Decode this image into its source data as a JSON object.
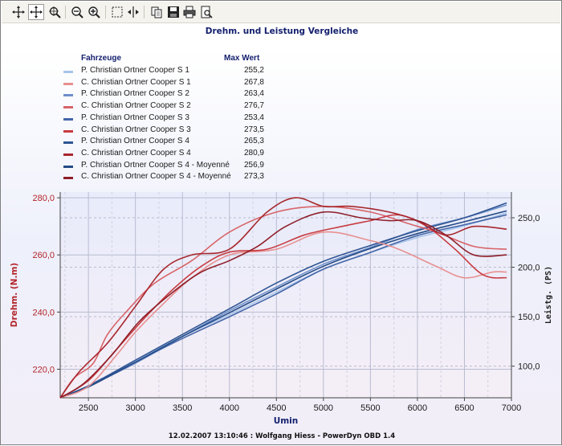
{
  "toolbar": {
    "buttons": [
      {
        "name": "move-tool-icon"
      },
      {
        "name": "zoom-area-icon"
      },
      {
        "name": "zoom-out-icon"
      },
      {
        "name": "zoom-in-icon"
      },
      {
        "name": "select-region-icon"
      },
      {
        "name": "cursor-split-icon"
      },
      {
        "name": "copy-icon"
      },
      {
        "name": "save-icon"
      },
      {
        "name": "print-icon"
      },
      {
        "name": "print-preview-icon"
      }
    ]
  },
  "legend": {
    "header_name": "Fahrzeuge",
    "header_value": "Max Wert",
    "items": [
      {
        "name": "P. Christian Ortner Cooper S 1",
        "value": "255,2",
        "color": "#a8c4ea"
      },
      {
        "name": "C. Christian Ortner Cooper S 1",
        "value": "267,8",
        "color": "#e89090"
      },
      {
        "name": "P. Christian Ortner Cooper S 2",
        "value": "263,4",
        "color": "#6e8fc9"
      },
      {
        "name": "C. Christian Ortner Cooper S 2",
        "value": "276,7",
        "color": "#d86468"
      },
      {
        "name": "P. Christian Ortner Cooper S 3",
        "value": "253,4",
        "color": "#4466a8"
      },
      {
        "name": "C. Christian Ortner Cooper S 3",
        "value": "273,5",
        "color": "#c83c42"
      },
      {
        "name": "P. Christian Ortner Cooper S 4",
        "value": "265,3",
        "color": "#2f5593"
      },
      {
        "name": "C. Christian Ortner Cooper S 4",
        "value": "280,9",
        "color": "#a8282e"
      },
      {
        "name": "P. Christian Ortner Cooper S 4 - Moyenné",
        "value": "256,9",
        "color": "#244a86"
      },
      {
        "name": "C. Christian Ortner Cooper S 4 - Moyenné",
        "value": "273,3",
        "color": "#8e1e28"
      }
    ]
  },
  "chart_data": {
    "type": "line",
    "title": "Drehm. und Leistung Vergleiche",
    "xlabel": "Umin",
    "ylabel_left": "Drehm. (N.m)",
    "ylabel_right": "Leistg. (PS)",
    "xlim": [
      2200,
      7000
    ],
    "ylim_left": [
      210,
      282
    ],
    "ylim_right": [
      68,
      276
    ],
    "x_ticks": [
      2500,
      3000,
      3500,
      4000,
      4500,
      5000,
      5500,
      6000,
      6500,
      7000
    ],
    "y_left_ticks": [
      "220,0",
      "240,0",
      "260,0",
      "280,0"
    ],
    "y_left_tick_values": [
      220,
      240,
      260,
      280
    ],
    "y_right_ticks": [
      "100,0",
      "150,0",
      "200,0",
      "250,0"
    ],
    "y_right_tick_values": [
      100,
      150,
      200,
      250
    ],
    "torque_series": [
      {
        "name": "C. Christian Ortner Cooper S 1",
        "color": "#e89090",
        "x": [
          2200,
          2500,
          2800,
          3000,
          3300,
          3600,
          4000,
          4500,
          5000,
          5500,
          5800,
          6200,
          6500,
          6800,
          6950
        ],
        "y": [
          210,
          214,
          225,
          233,
          243,
          252,
          260,
          262,
          268,
          265,
          262,
          256,
          252,
          254,
          254
        ]
      },
      {
        "name": "C. Christian Ortner Cooper S 2",
        "color": "#d86468",
        "x": [
          2200,
          2350,
          2550,
          2700,
          2900,
          3200,
          3600,
          4000,
          4500,
          5000,
          5500,
          5900,
          6200,
          6600,
          6950
        ],
        "y": [
          210,
          217,
          222,
          232,
          240,
          250,
          258,
          268,
          275,
          277,
          275,
          271,
          268,
          263,
          262
        ]
      },
      {
        "name": "C. Christian Ortner Cooper S 3",
        "color": "#c83c42",
        "x": [
          2200,
          2500,
          2800,
          3100,
          3400,
          3700,
          4000,
          4400,
          4800,
          5200,
          5500,
          5800,
          6100,
          6400,
          6700,
          6950
        ],
        "y": [
          210,
          216,
          227,
          238,
          248,
          256,
          261,
          262,
          267,
          270,
          272,
          274,
          270,
          262,
          253,
          252
        ]
      },
      {
        "name": "C. Christian Ortner Cooper S 4",
        "color": "#a8282e",
        "x": [
          2200,
          2400,
          2700,
          3000,
          3300,
          3600,
          4000,
          4400,
          4700,
          5000,
          5300,
          5700,
          6000,
          6300,
          6600,
          6950
        ],
        "y": [
          210,
          219,
          229,
          242,
          255,
          260,
          262,
          275,
          280,
          277,
          277,
          275,
          272,
          267,
          270,
          269
        ]
      },
      {
        "name": "C. Christian Ortner Cooper S 4 - Moyenné",
        "color": "#8e1e28",
        "x": [
          2200,
          2450,
          2750,
          3050,
          3400,
          3700,
          4000,
          4300,
          4600,
          5000,
          5400,
          5700,
          6000,
          6300,
          6600,
          6950
        ],
        "y": [
          210,
          215,
          225,
          237,
          247,
          254,
          258,
          263,
          270,
          275,
          273,
          272,
          272,
          267,
          260,
          260
        ]
      }
    ],
    "power_series": [
      {
        "name": "P. Christian Ortner Cooper S 1",
        "color": "#a8c4ea",
        "x": [
          2200,
          2500,
          3000,
          3500,
          4000,
          4500,
          5000,
          5500,
          6000,
          6500,
          6950
        ],
        "y": [
          68,
          80,
          105,
          130,
          152,
          175,
          198,
          215,
          230,
          242,
          255
        ]
      },
      {
        "name": "P. Christian Ortner Cooper S 2",
        "color": "#6e8fc9",
        "x": [
          2200,
          2500,
          3000,
          3500,
          4000,
          4500,
          5000,
          5500,
          6000,
          6500,
          6950
        ],
        "y": [
          68,
          80,
          103,
          130,
          156,
          180,
          203,
          220,
          238,
          250,
          263
        ]
      },
      {
        "name": "P. Christian Ortner Cooper S 3",
        "color": "#4466a8",
        "x": [
          2200,
          2500,
          3000,
          3500,
          4000,
          4500,
          5000,
          5500,
          6000,
          6500,
          6950
        ],
        "y": [
          68,
          80,
          104,
          128,
          150,
          173,
          198,
          215,
          232,
          243,
          253
        ]
      },
      {
        "name": "P. Christian Ortner Cooper S 4",
        "color": "#2f5593",
        "x": [
          2200,
          2500,
          3000,
          3500,
          4000,
          4500,
          5000,
          5500,
          6000,
          6500,
          6950
        ],
        "y": [
          68,
          80,
          106,
          132,
          158,
          184,
          206,
          222,
          237,
          250,
          265
        ]
      },
      {
        "name": "P. Christian Ortner Cooper S 4 - Moyenné",
        "color": "#244a86",
        "x": [
          2200,
          2500,
          3000,
          3500,
          4000,
          4500,
          5000,
          5500,
          6000,
          6500,
          6950
        ],
        "y": [
          68,
          79,
          104,
          130,
          154,
          178,
          201,
          219,
          234,
          246,
          257
        ]
      }
    ]
  },
  "footer": "12.02.2007 13:10:46 : Wolfgang Hiess - PowerDyn OBD 1.4"
}
